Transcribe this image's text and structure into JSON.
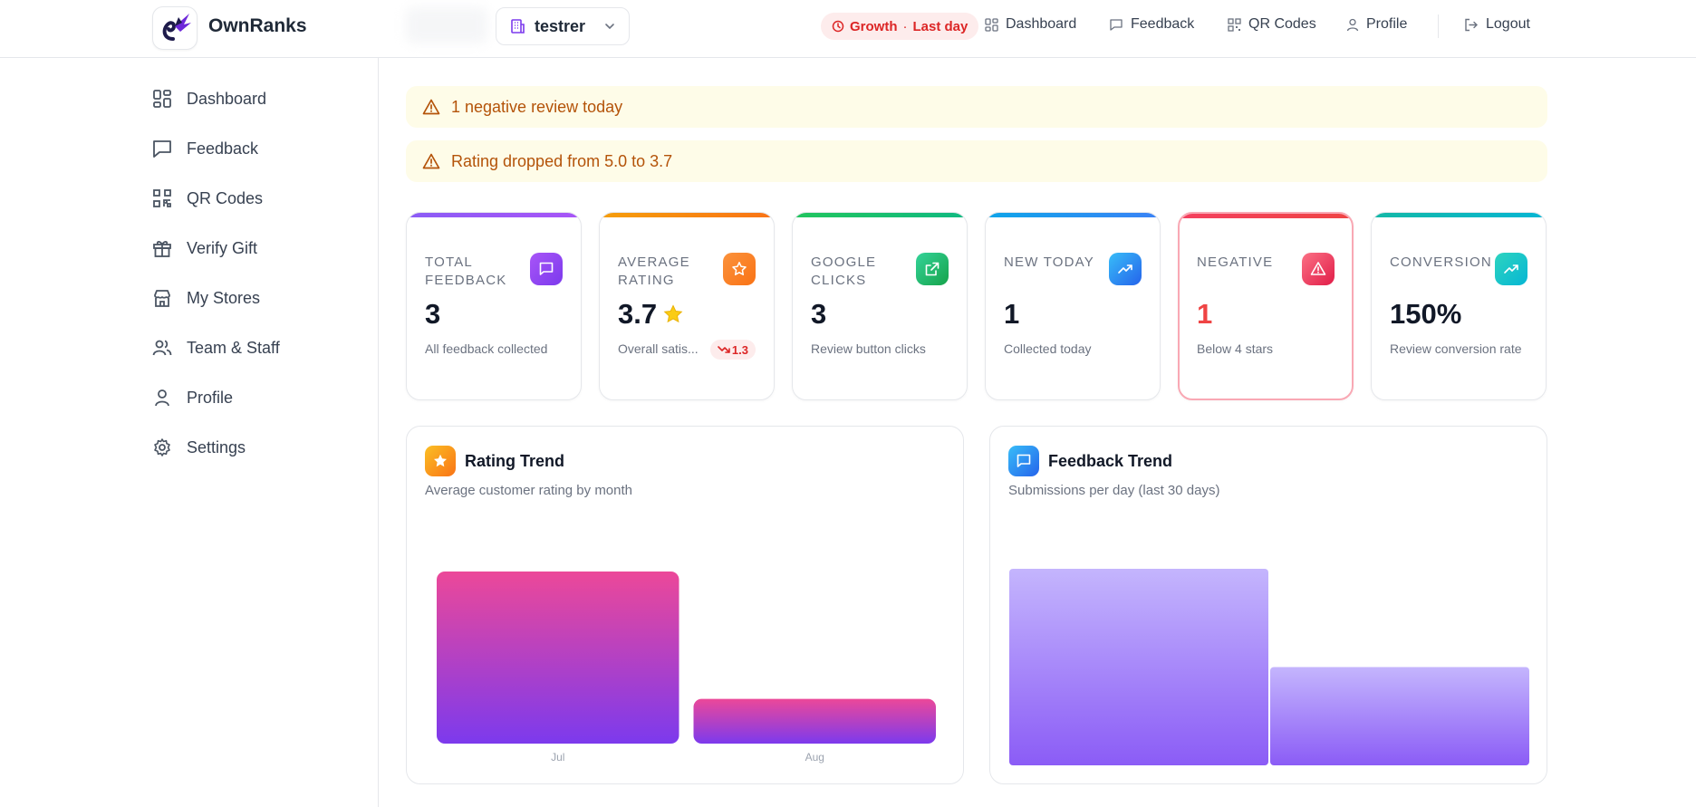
{
  "header": {
    "brand": "OwnRanks",
    "store": "testrer",
    "growth_label": "Growth",
    "growth_sep": "·",
    "growth_period": "Last day",
    "nav": {
      "dashboard": "Dashboard",
      "feedback": "Feedback",
      "qr_codes": "QR Codes",
      "profile": "Profile",
      "logout": "Logout"
    }
  },
  "sidebar": {
    "items": [
      {
        "label": "Dashboard",
        "icon": "grid-icon"
      },
      {
        "label": "Feedback",
        "icon": "message-icon"
      },
      {
        "label": "QR Codes",
        "icon": "qr-icon"
      },
      {
        "label": "Verify Gift",
        "icon": "gift-icon"
      },
      {
        "label": "My Stores",
        "icon": "store-icon"
      },
      {
        "label": "Team & Staff",
        "icon": "users-icon"
      },
      {
        "label": "Profile",
        "icon": "user-icon"
      },
      {
        "label": "Settings",
        "icon": "gear-icon"
      }
    ]
  },
  "alerts": [
    "1 negative review today",
    "Rating dropped from 5.0 to 3.7"
  ],
  "stats": [
    {
      "label": "Total Feedback",
      "value": "3",
      "sub": "All feedback collected",
      "color": "#8b5cf6"
    },
    {
      "label": "Average Rating",
      "value": "3.7",
      "sub": "Overall satis...",
      "delta": "1.3",
      "color": "#f97316"
    },
    {
      "label": "Google Clicks",
      "value": "3",
      "sub": "Review button clicks",
      "color": "#22c55e"
    },
    {
      "label": "New Today",
      "value": "1",
      "sub": "Collected today",
      "color": "#0ea5e9"
    },
    {
      "label": "Negative",
      "value": "1",
      "sub": "Below 4 stars",
      "color": "#f43f5e"
    },
    {
      "label": "Conversion",
      "value": "150%",
      "sub": "Review conversion rate",
      "color": "#14b8a6"
    }
  ],
  "panels": {
    "rating": {
      "title": "Rating Trend",
      "subtitle": "Average customer rating by month"
    },
    "feedback": {
      "title": "Feedback Trend",
      "subtitle": "Submissions per day (last 30 days)"
    }
  },
  "chart_data": [
    {
      "type": "bar",
      "title": "Rating Trend",
      "subtitle": "Average customer rating by month",
      "categories": [
        "Jul",
        "Aug"
      ],
      "values": [
        5.0,
        1.3
      ],
      "ylim": [
        0,
        5
      ],
      "grid": false,
      "colors": [
        "#ec4899",
        "#7c3aed"
      ]
    },
    {
      "type": "bar",
      "title": "Feedback Trend",
      "subtitle": "Submissions per day (last 30 days)",
      "categories": [
        "",
        ""
      ],
      "values": [
        2,
        1
      ],
      "ylim": [
        0,
        2
      ],
      "grid": false,
      "colors": [
        "#c4b5fd",
        "#8b5cf6"
      ]
    }
  ]
}
